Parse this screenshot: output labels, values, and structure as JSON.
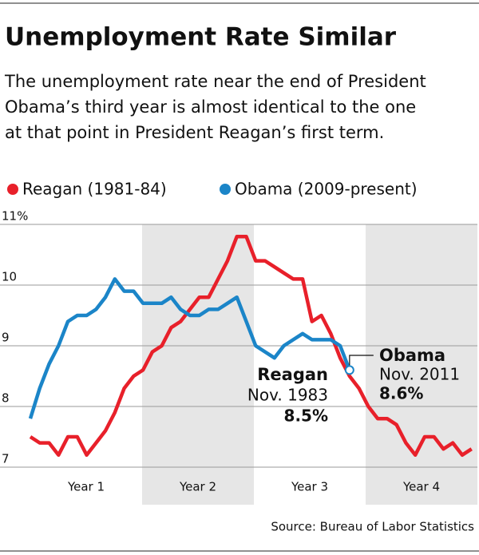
{
  "chart_data": {
    "type": "line",
    "title": "Unemployment Rate Similar",
    "subtitle": [
      "The unemployment rate near the end of President",
      "Obama’s third year is almost identical to the one",
      "at that point in President Reagan’s first term."
    ],
    "bands": [
      "Year 1",
      "Year 2",
      "Year 3",
      "Year 4"
    ],
    "series": [
      {
        "name": "Reagan (1981-84)",
        "color": "#e8202a",
        "values": [
          7.5,
          7.4,
          7.4,
          7.2,
          7.5,
          7.5,
          7.2,
          7.4,
          7.6,
          7.9,
          8.3,
          8.5,
          8.6,
          8.9,
          9.0,
          9.3,
          9.4,
          9.6,
          9.8,
          9.8,
          10.1,
          10.4,
          10.8,
          10.8,
          10.4,
          10.4,
          10.3,
          10.2,
          10.1,
          10.1,
          9.4,
          9.5,
          9.2,
          8.8,
          8.5,
          8.3,
          8.0,
          7.8,
          7.8,
          7.7,
          7.4,
          7.2,
          7.5,
          7.5,
          7.3,
          7.4,
          7.2,
          7.3
        ]
      },
      {
        "name": "Obama (2009-present)",
        "color": "#1b85c8",
        "values": [
          7.8,
          8.3,
          8.7,
          9.0,
          9.4,
          9.5,
          9.5,
          9.6,
          9.8,
          10.1,
          9.9,
          9.9,
          9.7,
          9.7,
          9.7,
          9.8,
          9.6,
          9.5,
          9.5,
          9.6,
          9.6,
          9.7,
          9.8,
          9.4,
          9.0,
          8.9,
          8.8,
          9.0,
          9.1,
          9.2,
          9.1,
          9.1,
          9.1,
          9.0,
          8.6
        ]
      }
    ],
    "annotations": [
      {
        "name": "Reagan",
        "date": "Nov. 1983",
        "value_label": "8.5%"
      },
      {
        "name": "Obama",
        "date": "Nov. 2011",
        "value_label": "8.6%"
      }
    ],
    "ylim": [
      7,
      11
    ],
    "yticks": [
      7,
      8,
      9,
      10,
      {
        "value": 11,
        "label": "11%"
      }
    ],
    "grid": true,
    "source": "Source: Bureau of Labor Statistics"
  }
}
